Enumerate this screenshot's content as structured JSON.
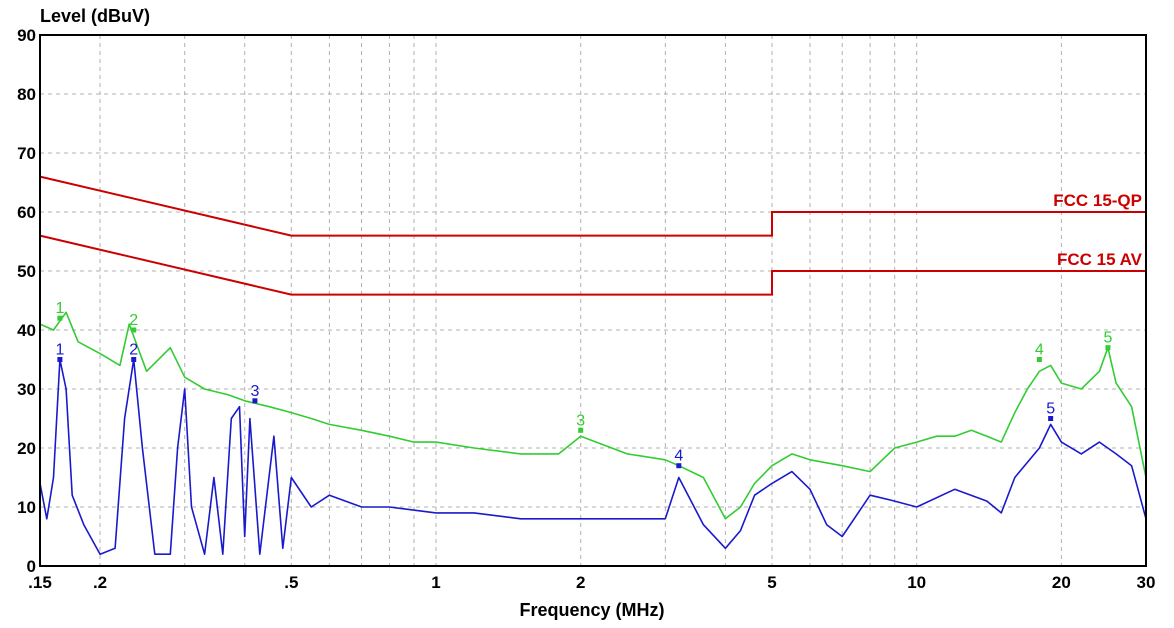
{
  "chart_data": {
    "type": "line",
    "ylabel": "Level (dBuV)",
    "xlabel": "Frequency (MHz)",
    "x_scale": "log",
    "xlim": [
      0.15,
      30
    ],
    "ylim": [
      0,
      90
    ],
    "grid": true,
    "x_ticks": [
      {
        "value": 0.15,
        "label": ".15"
      },
      {
        "value": 0.2,
        "label": ".2"
      },
      {
        "value": 0.5,
        "label": ".5"
      },
      {
        "value": 1,
        "label": "1"
      },
      {
        "value": 2,
        "label": "2"
      },
      {
        "value": 5,
        "label": "5"
      },
      {
        "value": 10,
        "label": "10"
      },
      {
        "value": 20,
        "label": "20"
      },
      {
        "value": 30,
        "label": "30"
      }
    ],
    "y_ticks": [
      0,
      10,
      20,
      30,
      40,
      50,
      60,
      70,
      80,
      90
    ],
    "limit_lines": [
      {
        "name": "FCC 15-QP",
        "color": "#cc0000",
        "x": [
          0.15,
          0.5,
          0.5,
          5,
          5,
          30
        ],
        "y": [
          66,
          56,
          56,
          56,
          60,
          60
        ]
      },
      {
        "name": "FCC 15 AV",
        "color": "#cc0000",
        "x": [
          0.15,
          0.5,
          0.5,
          5,
          5,
          30
        ],
        "y": [
          56,
          46,
          46,
          46,
          50,
          50
        ]
      }
    ],
    "series": [
      {
        "color": "#33cc33",
        "x": [
          0.15,
          0.16,
          0.17,
          0.18,
          0.2,
          0.22,
          0.23,
          0.25,
          0.28,
          0.3,
          0.33,
          0.37,
          0.4,
          0.45,
          0.5,
          0.55,
          0.6,
          0.7,
          0.8,
          0.9,
          1.0,
          1.2,
          1.5,
          1.8,
          2.0,
          2.5,
          3.0,
          3.2,
          3.6,
          4.0,
          4.3,
          4.6,
          5.0,
          5.5,
          6.0,
          7.0,
          8.0,
          9.0,
          10,
          11,
          12,
          13,
          14,
          15,
          16,
          17,
          18,
          19,
          20,
          22,
          24,
          25,
          26,
          28,
          30
        ],
        "y": [
          41,
          40,
          43,
          38,
          36,
          34,
          41,
          33,
          37,
          32,
          30,
          29,
          28,
          27,
          26,
          25,
          24,
          23,
          22,
          21,
          21,
          20,
          19,
          19,
          22,
          19,
          18,
          17,
          15,
          8,
          10,
          14,
          17,
          19,
          18,
          17,
          16,
          20,
          21,
          22,
          22,
          23,
          22,
          21,
          26,
          30,
          33,
          34,
          31,
          30,
          33,
          37,
          31,
          27,
          15
        ]
      },
      {
        "color": "#1a1acc",
        "x": [
          0.15,
          0.155,
          0.16,
          0.165,
          0.17,
          0.175,
          0.185,
          0.2,
          0.215,
          0.225,
          0.235,
          0.245,
          0.26,
          0.28,
          0.29,
          0.3,
          0.31,
          0.33,
          0.345,
          0.36,
          0.375,
          0.39,
          0.4,
          0.41,
          0.43,
          0.46,
          0.48,
          0.5,
          0.55,
          0.6,
          0.7,
          0.8,
          1.0,
          1.2,
          1.5,
          2.0,
          2.5,
          3.0,
          3.2,
          3.6,
          4.0,
          4.3,
          4.6,
          5.0,
          5.5,
          6.0,
          6.5,
          7.0,
          8.0,
          9.0,
          10,
          12,
          14,
          15,
          16,
          18,
          19,
          20,
          22,
          24,
          26,
          28,
          30
        ],
        "y": [
          14,
          8,
          15,
          35,
          30,
          12,
          7,
          2,
          3,
          25,
          35,
          20,
          2,
          2,
          20,
          30,
          10,
          2,
          15,
          2,
          25,
          27,
          5,
          25,
          2,
          22,
          3,
          15,
          10,
          12,
          10,
          10,
          9,
          9,
          8,
          8,
          8,
          8,
          15,
          7,
          3,
          6,
          12,
          14,
          16,
          13,
          7,
          5,
          12,
          11,
          10,
          13,
          11,
          9,
          15,
          20,
          24,
          21,
          19,
          21,
          19,
          17,
          8
        ]
      }
    ],
    "markers": [
      {
        "label": "1",
        "x": 0.165,
        "y": 42,
        "color": "#33cc33"
      },
      {
        "label": "2",
        "x": 0.235,
        "y": 40,
        "color": "#33cc33"
      },
      {
        "label": "3",
        "x": 2.0,
        "y": 23,
        "color": "#33cc33"
      },
      {
        "label": "4",
        "x": 18,
        "y": 35,
        "color": "#33cc33"
      },
      {
        "label": "5",
        "x": 25,
        "y": 37,
        "color": "#33cc33"
      },
      {
        "label": "1",
        "x": 0.165,
        "y": 35,
        "color": "#1a1acc"
      },
      {
        "label": "2",
        "x": 0.235,
        "y": 35,
        "color": "#1a1acc"
      },
      {
        "label": "3",
        "x": 0.42,
        "y": 28,
        "color": "#1a1acc"
      },
      {
        "label": "4",
        "x": 3.2,
        "y": 17,
        "color": "#1a1acc"
      },
      {
        "label": "5",
        "x": 19,
        "y": 25,
        "color": "#1a1acc"
      }
    ]
  }
}
